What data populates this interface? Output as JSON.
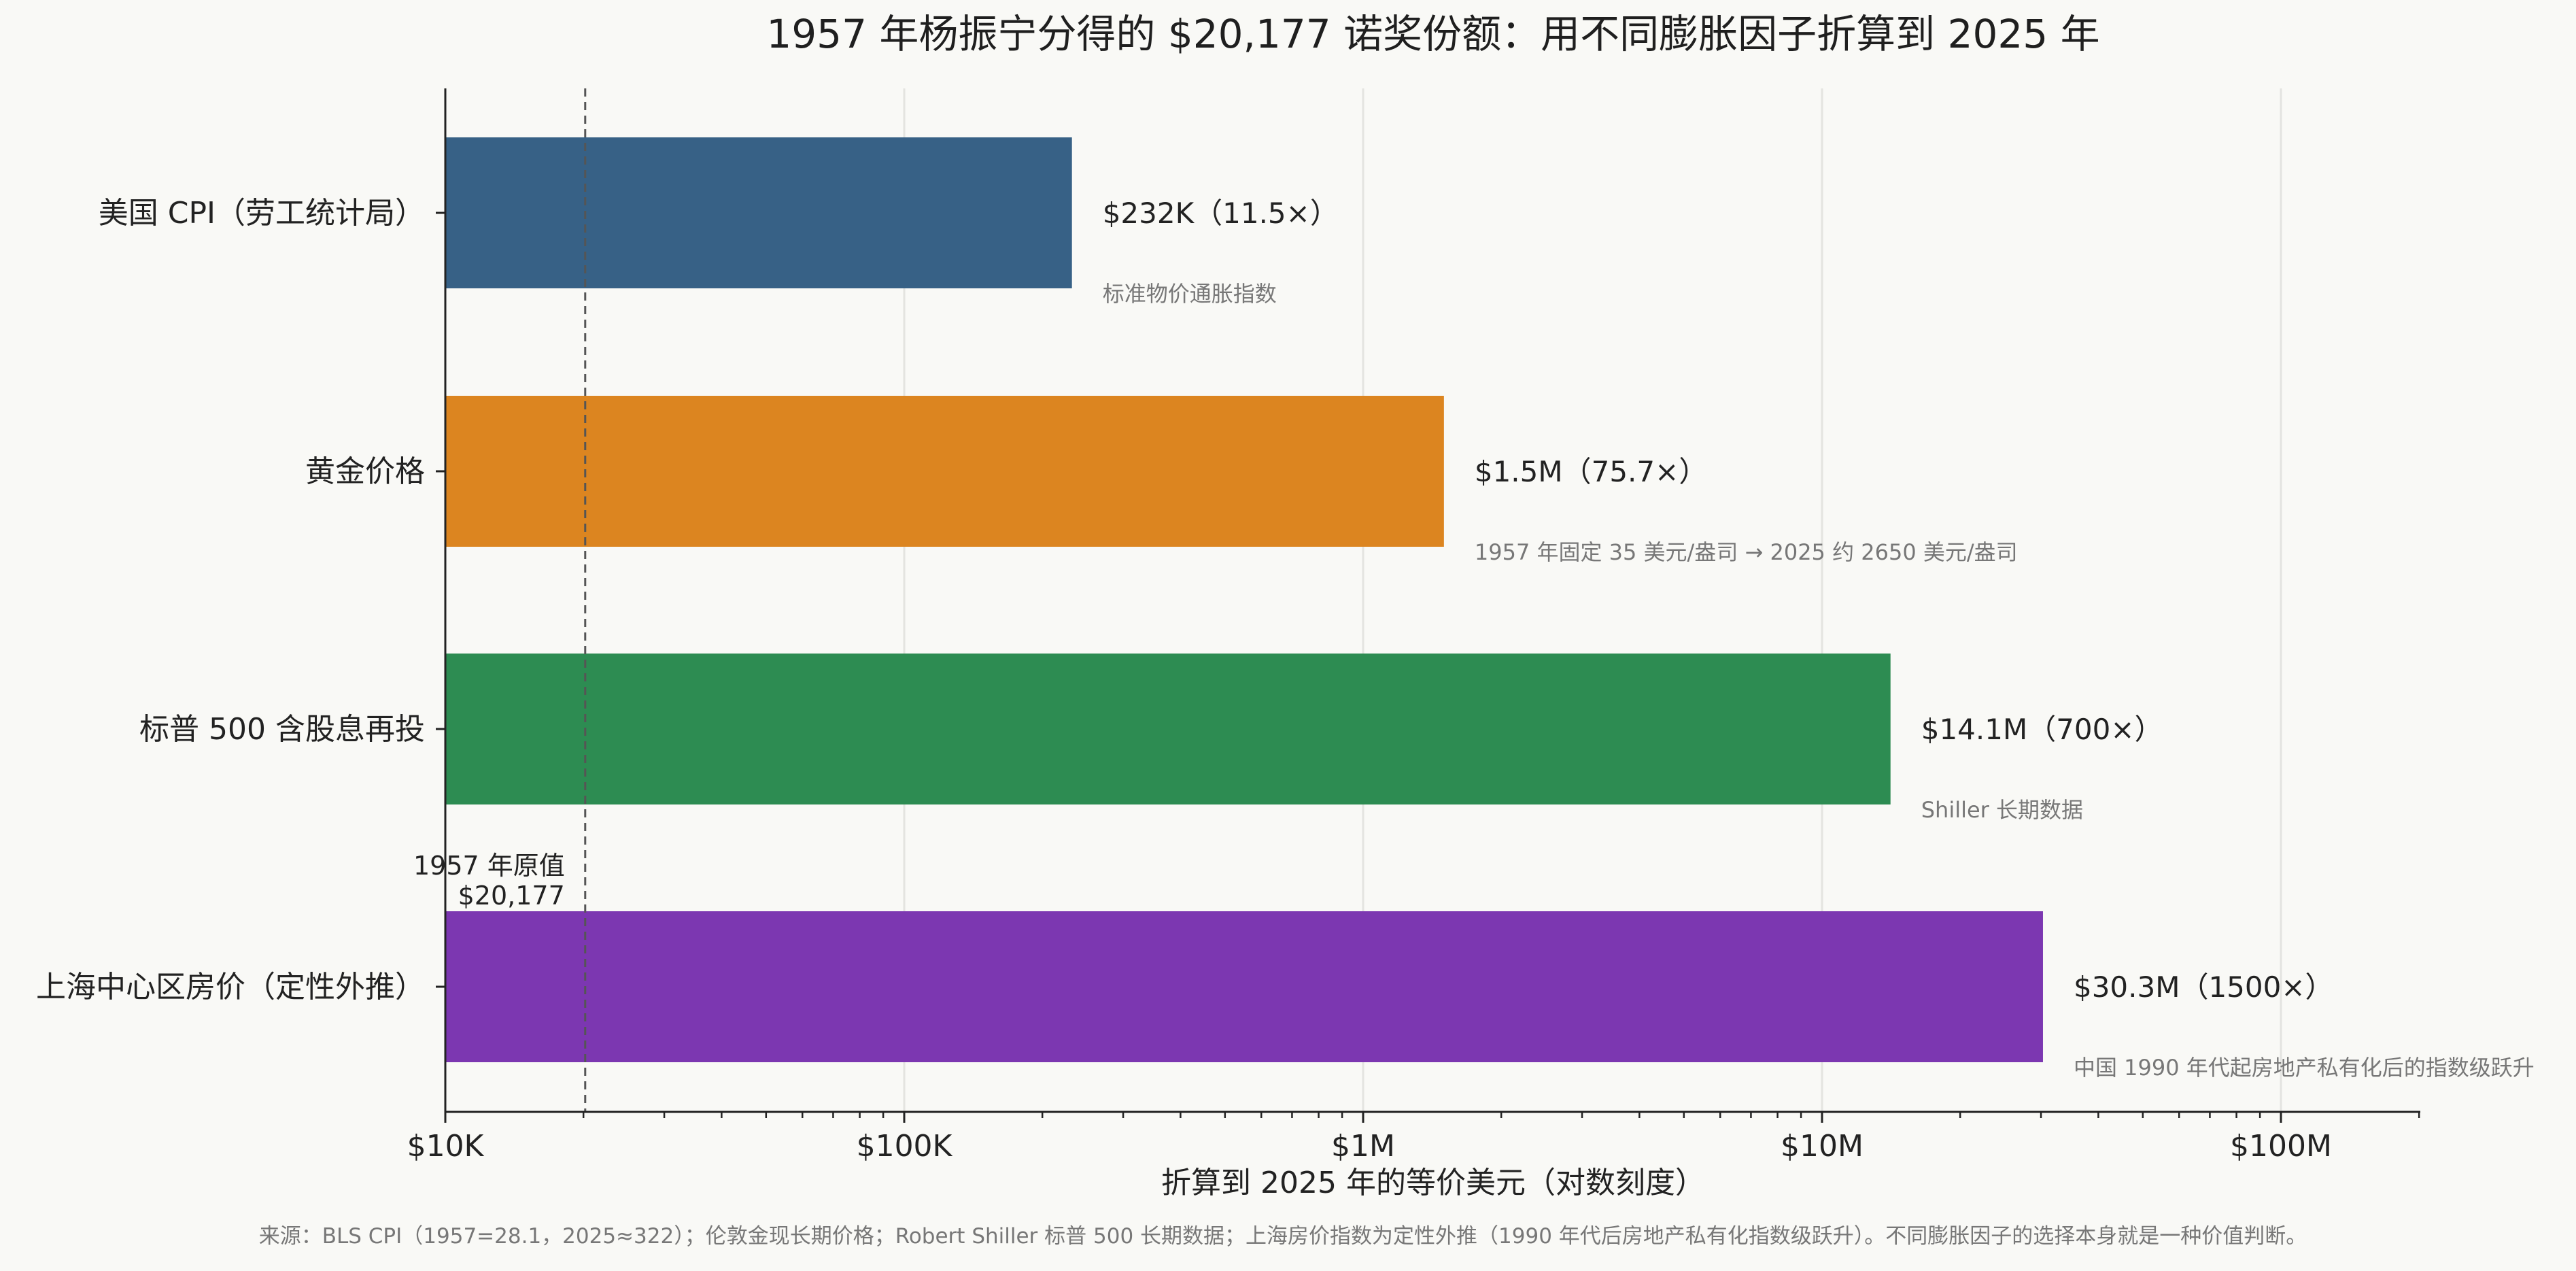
{
  "chart_data": {
    "type": "bar",
    "orientation": "horizontal",
    "title": "1957 年杨振宁分得的 $20,177 诺奖份额：用不同膨胀因子折算到 2025 年",
    "xlabel": "折算到 2025 年的等价美元（对数刻度）",
    "x_scale": "log",
    "xlim": [
      10000,
      200000000
    ],
    "x_ticks": [
      {
        "value": 10000,
        "label": "$10K"
      },
      {
        "value": 100000,
        "label": "$100K"
      },
      {
        "value": 1000000,
        "label": "$1M"
      },
      {
        "value": 10000000,
        "label": "$10M"
      },
      {
        "value": 100000000,
        "label": "$100M"
      }
    ],
    "grid": "vertical major lines",
    "categories": [
      "美国 CPI（劳工统计局）",
      "黄金价格",
      "标普 500 含股息再投",
      "上海中心区房价（定性外推）"
    ],
    "values": [
      232000,
      1500000,
      14100000,
      30300000
    ],
    "colors": [
      "#376186",
      "#dc8520",
      "#2d8c52",
      "#7c37b1"
    ],
    "value_labels": [
      "$232K（11.5×）",
      "$1.5M（75.7×）",
      "$14.1M（700×）",
      "$30.3M（1500×）"
    ],
    "notes": [
      "标准物价通胀指数",
      "1957 年固定 35 美元/盎司 → 2025 约 2650 美元/盎司",
      "Shiller 长期数据",
      "中国 1990 年代起房地产私有化后的指数级跃升"
    ],
    "reference_line": {
      "value": 20177,
      "label_line1": "1957 年原值",
      "label_line2": "$20,177"
    },
    "source": "来源：BLS CPI（1957=28.1，2025≈322）；伦敦金现长期价格；Robert Shiller 标普 500 长期数据；上海房价指数为定性外推（1990 年代后房地产私有化指数级跃升）。不同膨胀因子的选择本身就是一种价值判断。"
  }
}
